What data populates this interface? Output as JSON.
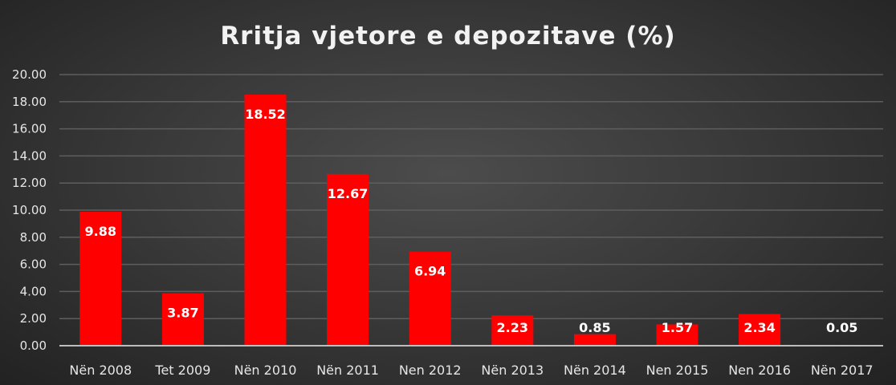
{
  "chart_data": {
    "type": "bar",
    "title": "Rritja vjetore e depozitave (%)",
    "xlabel": "",
    "ylabel": "",
    "ylim": [
      0,
      20
    ],
    "yticks": [
      "0.00",
      "2.00",
      "4.00",
      "6.00",
      "8.00",
      "10.00",
      "12.00",
      "14.00",
      "16.00",
      "18.00",
      "20.00"
    ],
    "categories": [
      "Nën 2008",
      "Tet 2009",
      "Nën 2010",
      "Nën 2011",
      "Nen 2012",
      "Nën 2013",
      "Nën 2014",
      "Nen 2015",
      "Nen 2016",
      "Nën 2017"
    ],
    "values": [
      9.88,
      3.87,
      18.52,
      12.67,
      6.94,
      2.23,
      0.85,
      1.57,
      2.34,
      0.05
    ],
    "value_labels": [
      "9.88",
      "3.87",
      "18.52",
      "12.67",
      "6.94",
      "2.23",
      "0.85",
      "1.57",
      "2.34",
      "0.05"
    ],
    "grid": true,
    "legend": "none",
    "bar_color": "#ff0000",
    "background": "#3a3a3a"
  }
}
